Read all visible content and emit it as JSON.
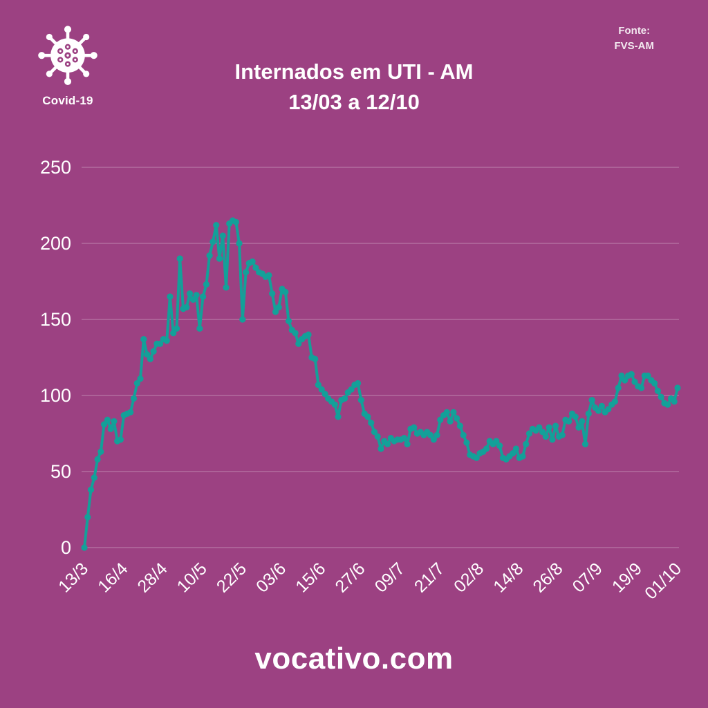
{
  "colors": {
    "background": "#9c4182",
    "line": "#13a099",
    "grid": "#ffffff",
    "text": "#ffffff"
  },
  "header": {
    "badge_label": "Covid-19",
    "title_line1": "Internados em UTI - AM",
    "title_line2": "13/03 a 12/10",
    "source_label": "Fonte:",
    "source_value": "FVS-AM"
  },
  "footer": {
    "site": "vocativo.com"
  },
  "chart_data": {
    "type": "line",
    "title": "Internados em UTI - AM",
    "subtitle": "13/03 a 12/10",
    "ylabel": "",
    "xlabel": "",
    "ylim": [
      0,
      250
    ],
    "yticks": [
      0,
      50,
      100,
      150,
      200,
      250
    ],
    "grid": true,
    "legend_position": "none",
    "x_tick_every": 12,
    "x_tick_labels": [
      "13/3",
      "16/4",
      "28/4",
      "10/5",
      "22/5",
      "03/6",
      "15/6",
      "27/6",
      "09/7",
      "21/7",
      "02/8",
      "14/8",
      "26/8",
      "07/9",
      "19/9",
      "01/10"
    ],
    "values": [
      0,
      20,
      38,
      46,
      58,
      63,
      81,
      84,
      78,
      83,
      70,
      71,
      87,
      88,
      89,
      98,
      108,
      111,
      137,
      127,
      124,
      129,
      134,
      134,
      137,
      136,
      165,
      141,
      144,
      190,
      157,
      158,
      167,
      163,
      166,
      144,
      165,
      173,
      192,
      201,
      212,
      190,
      205,
      171,
      213,
      215,
      214,
      200,
      150,
      181,
      187,
      188,
      184,
      181,
      180,
      178,
      179,
      167,
      155,
      158,
      170,
      168,
      149,
      143,
      141,
      134,
      137,
      139,
      140,
      125,
      124,
      107,
      104,
      101,
      98,
      96,
      94,
      86,
      97,
      98,
      102,
      104,
      107,
      108,
      97,
      88,
      86,
      82,
      76,
      73,
      65,
      70,
      68,
      72,
      70,
      71,
      71,
      72,
      68,
      78,
      79,
      75,
      76,
      74,
      76,
      74,
      71,
      74,
      84,
      87,
      89,
      83,
      89,
      85,
      80,
      74,
      69,
      61,
      60,
      59,
      62,
      63,
      65,
      70,
      68,
      70,
      67,
      59,
      58,
      60,
      62,
      65,
      59,
      60,
      68,
      75,
      78,
      77,
      79,
      76,
      73,
      79,
      71,
      80,
      73,
      74,
      84,
      83,
      88,
      86,
      79,
      83,
      68,
      88,
      97,
      92,
      90,
      93,
      89,
      91,
      94,
      96,
      105,
      113,
      110,
      113,
      114,
      109,
      106,
      105,
      113,
      113,
      110,
      108,
      103,
      99,
      95,
      94,
      98,
      96,
      105
    ]
  }
}
